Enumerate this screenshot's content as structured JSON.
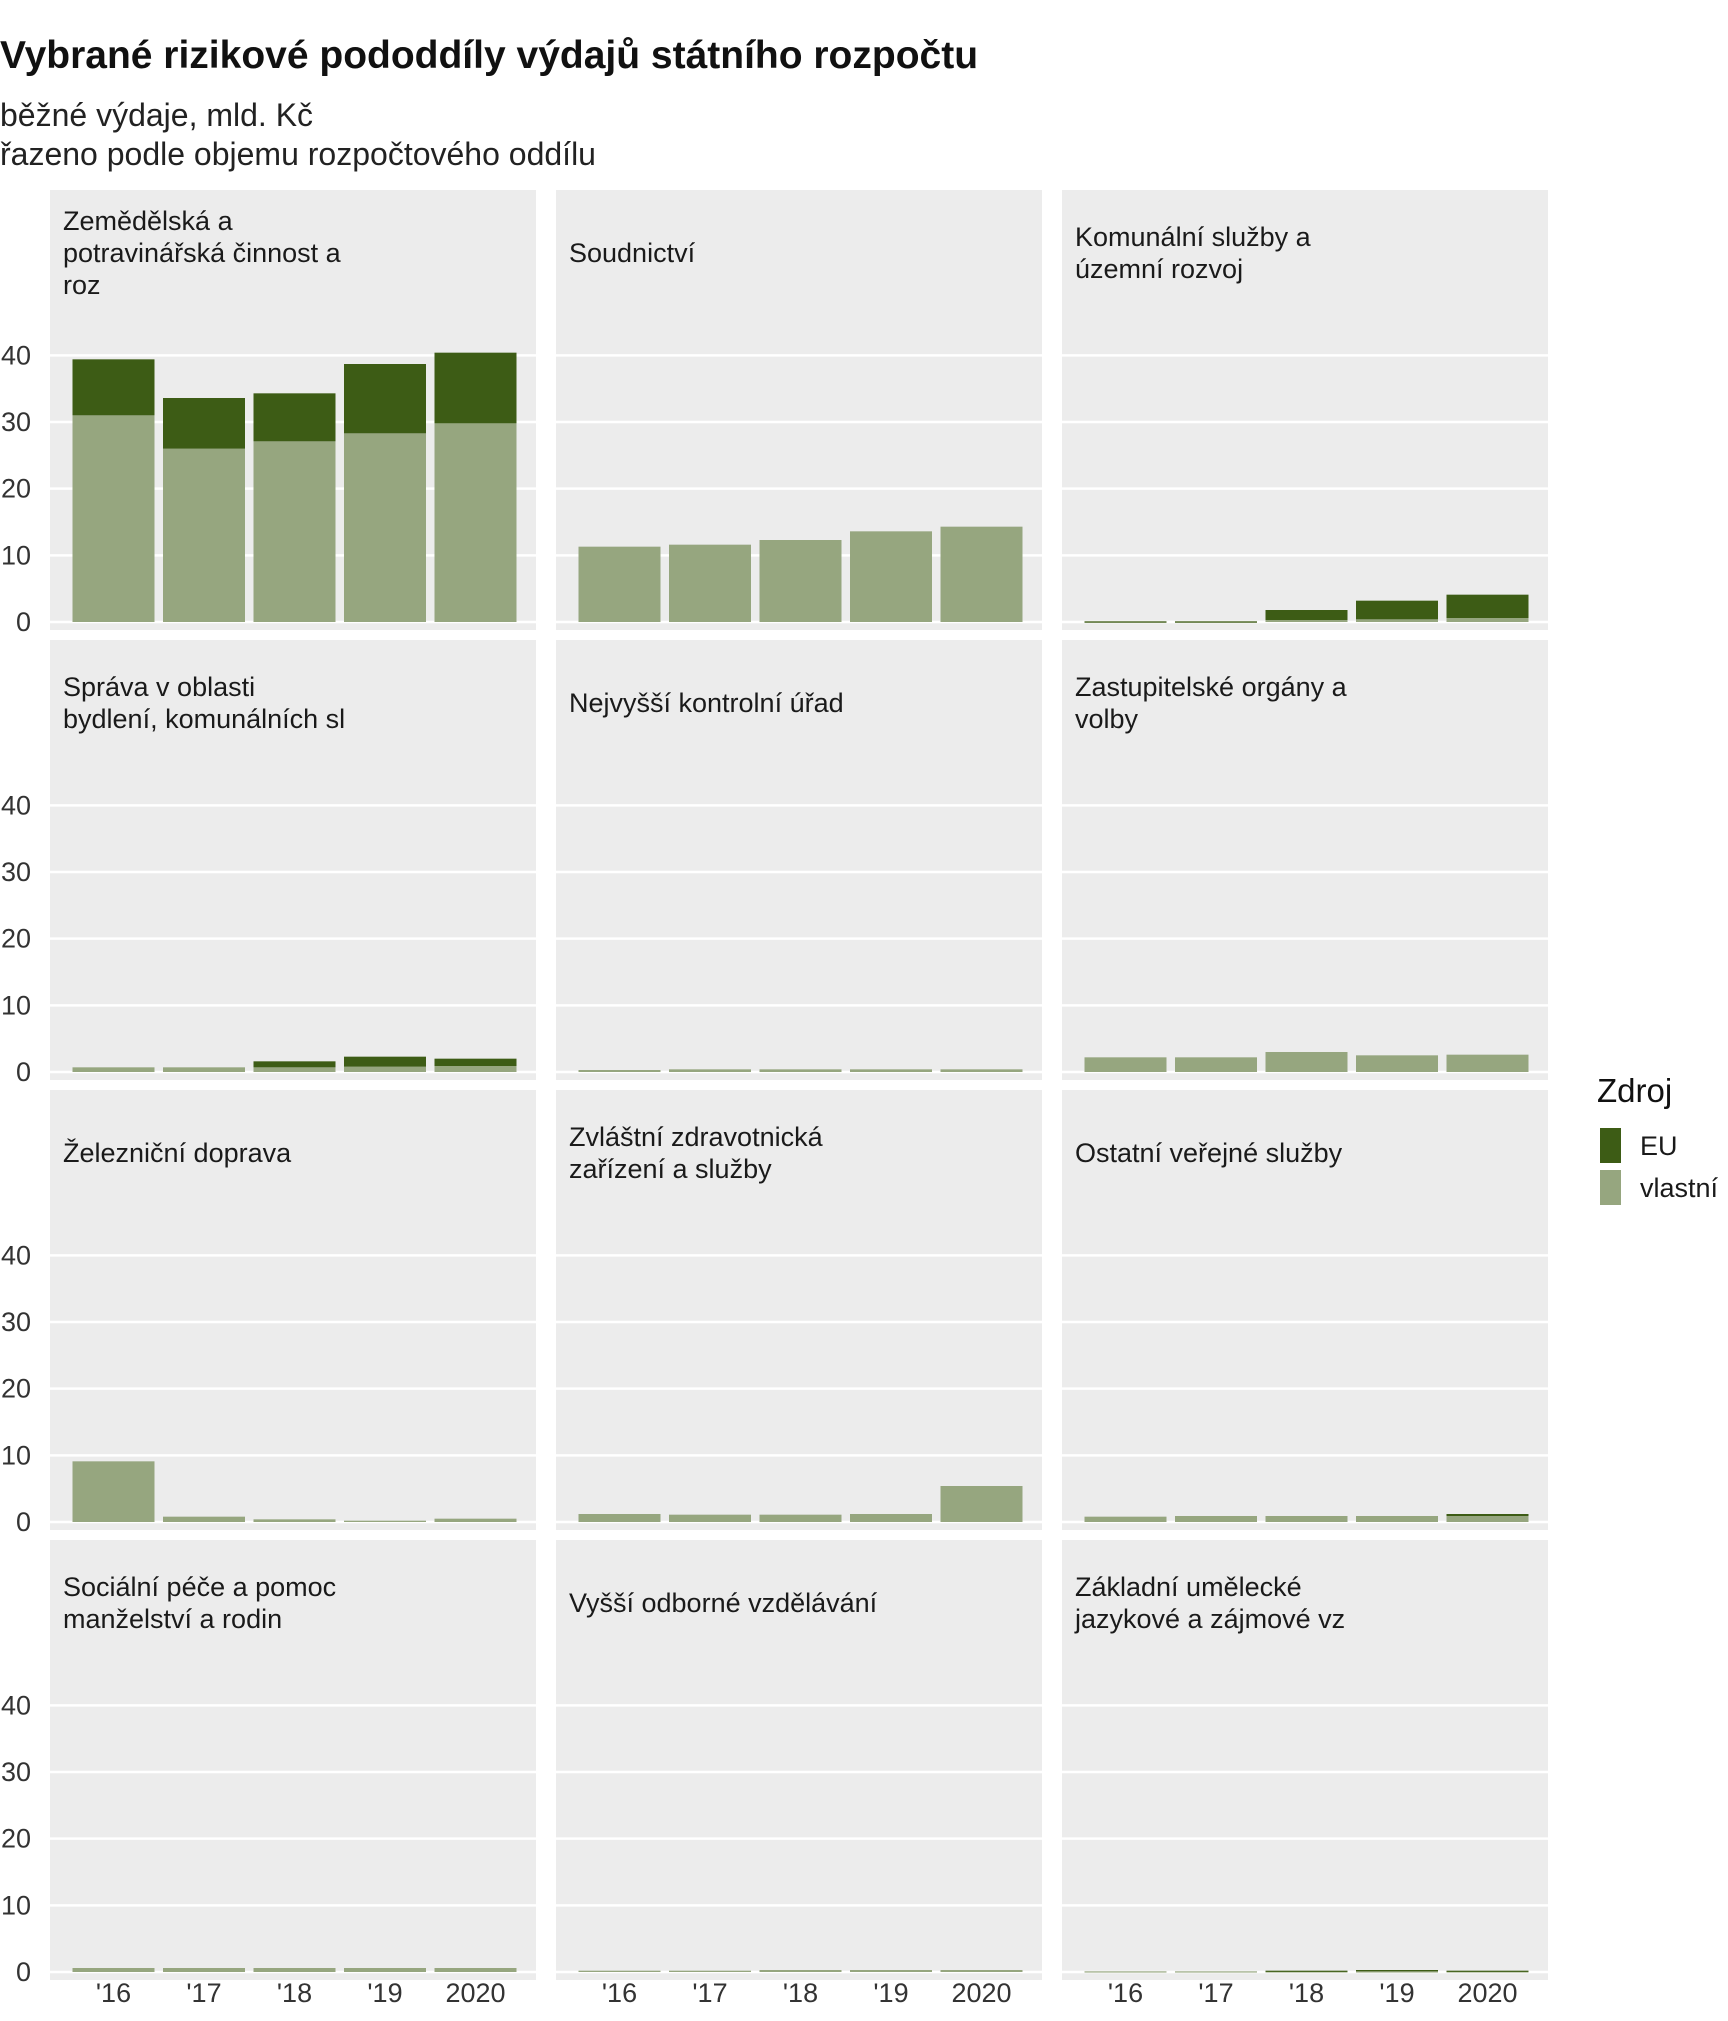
{
  "chart_data": {
    "type": "bar",
    "stacked": true,
    "title": "Vybrané rizikové pododdíly výdajů státního rozpočtu",
    "subtitle_lines": [
      "běžné výdaje, mld. Kč",
      "řazeno podle objemu rozpočtového oddílu"
    ],
    "xlabel": "",
    "ylabel": "",
    "ylim": [
      0,
      40
    ],
    "yticks": [
      0,
      10,
      20,
      30,
      40
    ],
    "categories": [
      "'16",
      "'17",
      "'18",
      "'19",
      "2020"
    ],
    "grid": true,
    "legend": {
      "title": "Zdroj",
      "position": "right",
      "entries": [
        {
          "name": "EU",
          "color": "#3d5c15"
        },
        {
          "name": "vlastní",
          "color": "#96a67f"
        }
      ]
    },
    "panel_background": "#ececec",
    "panels": [
      {
        "title_lines": [
          "Zemědělská a",
          "potravinářská činnost a",
          "roz"
        ],
        "vlastni": [
          31.0,
          26.0,
          27.1,
          28.3,
          29.8
        ],
        "eu": [
          8.4,
          7.6,
          7.2,
          10.4,
          10.6
        ]
      },
      {
        "title_lines": [
          "Soudnictví"
        ],
        "vlastni": [
          11.3,
          11.6,
          12.3,
          13.6,
          14.3
        ],
        "eu": [
          0,
          0,
          0,
          0,
          0
        ]
      },
      {
        "title_lines": [
          "Komunální služby a",
          "územní rozvoj"
        ],
        "vlastni": [
          0.05,
          0.05,
          0.3,
          0.4,
          0.6
        ],
        "eu": [
          0.05,
          0.05,
          1.5,
          2.8,
          3.5
        ]
      },
      {
        "title_lines": [
          "Správa v oblasti",
          "bydlení, komunálních sl"
        ],
        "vlastni": [
          0.7,
          0.7,
          0.7,
          0.8,
          0.9
        ],
        "eu": [
          0,
          0,
          0.9,
          1.5,
          1.1
        ]
      },
      {
        "title_lines": [
          "Nejvyšší kontrolní úřad"
        ],
        "vlastni": [
          0.3,
          0.4,
          0.4,
          0.4,
          0.4
        ],
        "eu": [
          0,
          0,
          0,
          0,
          0
        ]
      },
      {
        "title_lines": [
          "Zastupitelské orgány a",
          "volby"
        ],
        "vlastni": [
          2.2,
          2.2,
          3.0,
          2.5,
          2.6
        ],
        "eu": [
          0,
          0,
          0,
          0,
          0
        ]
      },
      {
        "title_lines": [
          "Železniční doprava"
        ],
        "vlastni": [
          9.1,
          0.8,
          0.4,
          0.2,
          0.5
        ],
        "eu": [
          0,
          0,
          0,
          0,
          0
        ]
      },
      {
        "title_lines": [
          "Zvláštní zdravotnická",
          "zařízení a služby"
        ],
        "vlastni": [
          1.2,
          1.1,
          1.1,
          1.2,
          5.4
        ],
        "eu": [
          0,
          0,
          0,
          0,
          0
        ]
      },
      {
        "title_lines": [
          "Ostatní veřejné služby"
        ],
        "vlastni": [
          0.8,
          0.9,
          0.9,
          0.9,
          0.9
        ],
        "eu": [
          0,
          0,
          0,
          0,
          0.3
        ]
      },
      {
        "title_lines": [
          "Sociální péče a pomoc",
          "manželství a rodin"
        ],
        "vlastni": [
          0.6,
          0.6,
          0.6,
          0.6,
          0.6
        ],
        "eu": [
          0,
          0,
          0,
          0,
          0
        ]
      },
      {
        "title_lines": [
          "Vyšší odborné vzdělávání"
        ],
        "vlastni": [
          0.2,
          0.2,
          0.3,
          0.3,
          0.3
        ],
        "eu": [
          0,
          0,
          0,
          0,
          0
        ]
      },
      {
        "title_lines": [
          "Základní umělecké",
          "jazykové a zájmové vz"
        ],
        "vlastni": [
          0.1,
          0.1,
          0.1,
          0.1,
          0.1
        ],
        "eu": [
          0,
          0,
          0.1,
          0.2,
          0.1
        ]
      }
    ]
  }
}
